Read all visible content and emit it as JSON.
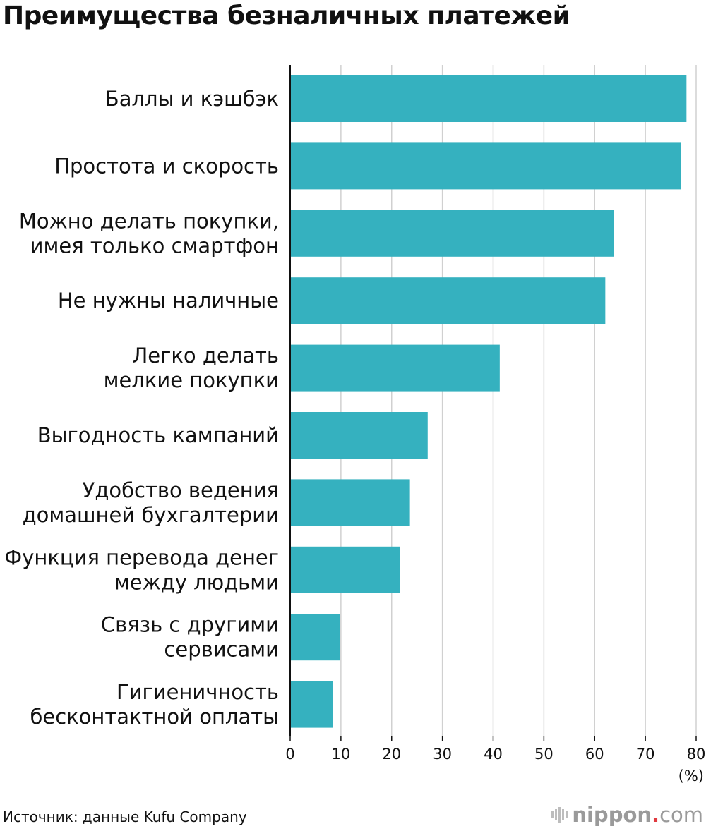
{
  "title": "Преимущества безналичных платежей",
  "source": "Источник: данные Kufu Company",
  "logo": {
    "word": "nippon",
    "dot": ".",
    "suffix": "com"
  },
  "colors": {
    "bar": "#35b1bf",
    "grid": "#d0d0d0",
    "axis": "#111111"
  },
  "chart_data": {
    "type": "bar",
    "orientation": "horizontal",
    "title": "Преимущества безналичных платежей",
    "unit_label": "(%)",
    "categories": [
      [
        "Баллы и кэшбэк"
      ],
      [
        "Простота и скорость"
      ],
      [
        "Можно делать покупки,",
        "имея только смартфон"
      ],
      [
        "Не нужны наличные"
      ],
      [
        "Легко делать",
        "мелкие покупки"
      ],
      [
        "Выгодность кампаний"
      ],
      [
        "Удобство ведения",
        "домашней бухгалтерии"
      ],
      [
        "Функция перевода денег",
        "между людьми"
      ],
      [
        "Связь с другими",
        "сервисами"
      ],
      [
        "Гигиеничность",
        "бесконтактной оплаты"
      ]
    ],
    "values": [
      78.1,
      77.0,
      63.8,
      62.1,
      41.3,
      27.1,
      23.6,
      21.7,
      9.8,
      8.4
    ],
    "xlim": [
      0,
      80
    ],
    "xticks": [
      0,
      10,
      20,
      30,
      40,
      50,
      60,
      70,
      80
    ],
    "grid": true
  }
}
